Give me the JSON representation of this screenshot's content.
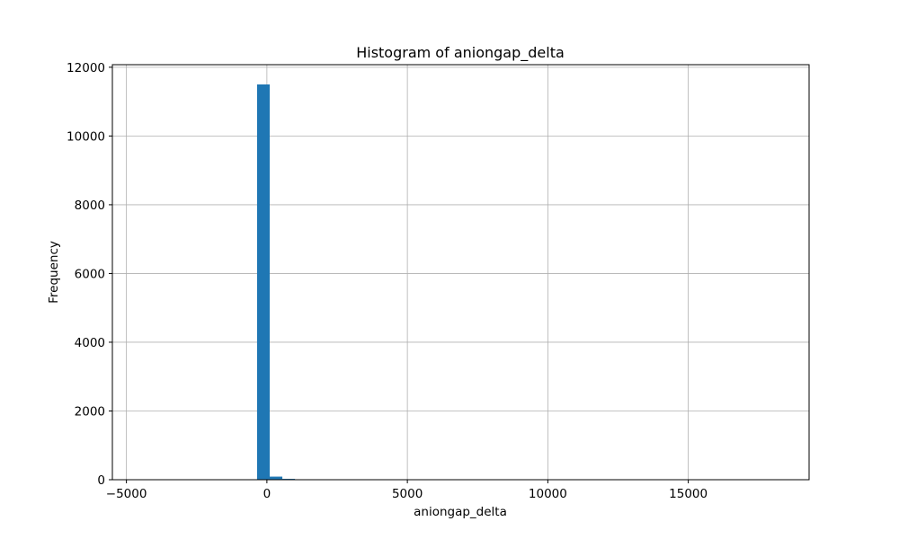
{
  "chart_data": {
    "type": "bar",
    "title": "Histogram of aniongap_delta",
    "xlabel": "aniongap_delta",
    "ylabel": "Frequency",
    "xlim": [
      -5500,
      19300
    ],
    "ylim": [
      0,
      12075
    ],
    "grid": true,
    "bar_color": "#1f77b4",
    "xticks": [
      -5000,
      0,
      5000,
      10000,
      15000
    ],
    "xtick_labels": [
      "−5000",
      "0",
      "5000",
      "10000",
      "15000"
    ],
    "yticks": [
      0,
      2000,
      4000,
      6000,
      8000,
      10000,
      12000
    ],
    "ytick_labels": [
      "0",
      "2000",
      "4000",
      "6000",
      "8000",
      "10000",
      "12000"
    ],
    "bins": [
      {
        "x0": -4800,
        "x1": -4350,
        "count": 2
      },
      {
        "x0": -350,
        "x1": 100,
        "count": 11500
      },
      {
        "x0": 100,
        "x1": 550,
        "count": 90
      },
      {
        "x0": 550,
        "x1": 1000,
        "count": 25
      },
      {
        "x0": 1000,
        "x1": 1450,
        "count": 8
      },
      {
        "x0": 1450,
        "x1": 1900,
        "count": 4
      },
      {
        "x0": 1900,
        "x1": 2350,
        "count": 3
      },
      {
        "x0": 2350,
        "x1": 2800,
        "count": 2
      },
      {
        "x0": 3000,
        "x1": 3450,
        "count": 1
      },
      {
        "x0": 4500,
        "x1": 4950,
        "count": 1
      },
      {
        "x0": 6500,
        "x1": 6950,
        "count": 1
      },
      {
        "x0": 9000,
        "x1": 9450,
        "count": 1
      },
      {
        "x0": 12000,
        "x1": 12450,
        "count": 1
      },
      {
        "x0": 18200,
        "x1": 18650,
        "count": 1
      }
    ]
  }
}
